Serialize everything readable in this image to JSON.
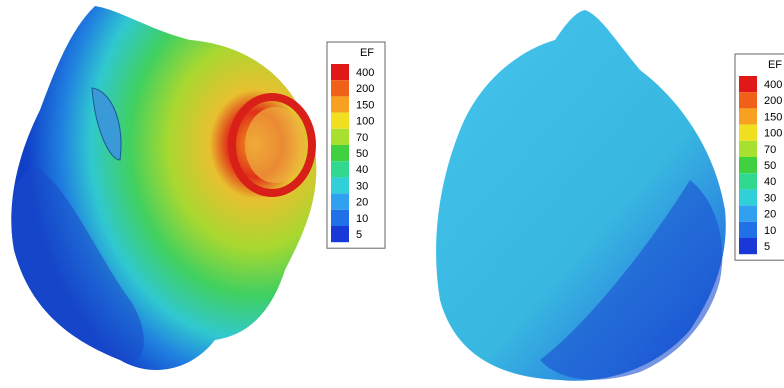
{
  "panels": [
    {
      "legend": {
        "title": "EF",
        "labels": [
          "400",
          "200",
          "150",
          "100",
          "70",
          "50",
          "40",
          "30",
          "20",
          "10",
          "5"
        ]
      }
    },
    {
      "legend": {
        "title": "EF",
        "labels": [
          "400",
          "200",
          "150",
          "100",
          "70",
          "50",
          "40",
          "30",
          "20",
          "10",
          "5"
        ]
      }
    }
  ]
}
